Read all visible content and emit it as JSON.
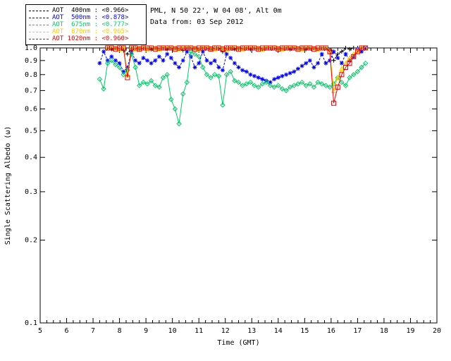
{
  "header": {
    "line1": "PML, N 50 22', W 04 08', Alt 0m",
    "line2": "Data from: 03 Sep 2012"
  },
  "chart_data": {
    "type": "line",
    "title": "",
    "xlabel": "Time (GMT)",
    "ylabel": "Single Scattering Albedo (ω)",
    "xlim": [
      5,
      20
    ],
    "ylim": [
      0.1,
      1.0
    ],
    "yscale": "log",
    "grid": false,
    "legend_position": "top-left",
    "xticks": [
      5,
      6,
      7,
      8,
      9,
      10,
      11,
      12,
      13,
      14,
      15,
      16,
      17,
      18,
      19,
      20
    ],
    "yticks": [
      1.0,
      0.9,
      0.8,
      0.7,
      0.6,
      0.5,
      0.4,
      0.3,
      0.2,
      0.1
    ],
    "x": [
      7.25,
      7.4,
      7.55,
      7.7,
      7.85,
      8.0,
      8.15,
      8.3,
      8.45,
      8.6,
      8.75,
      8.9,
      9.05,
      9.2,
      9.35,
      9.5,
      9.65,
      9.8,
      9.95,
      10.1,
      10.25,
      10.4,
      10.55,
      10.7,
      10.85,
      11.0,
      11.15,
      11.3,
      11.45,
      11.6,
      11.75,
      11.9,
      12.05,
      12.2,
      12.35,
      12.5,
      12.65,
      12.8,
      12.95,
      13.1,
      13.25,
      13.4,
      13.55,
      13.7,
      13.85,
      14.0,
      14.15,
      14.3,
      14.45,
      14.6,
      14.75,
      14.9,
      15.05,
      15.2,
      15.35,
      15.5,
      15.65,
      15.8,
      15.95,
      16.1,
      16.25,
      16.4,
      16.55,
      16.7,
      16.85,
      17.0,
      17.15,
      17.3
    ],
    "series": [
      {
        "name": "AOT 400nm",
        "label": "AOT  400nm : <0.966>",
        "mean": 0.966,
        "color": "#000000",
        "marker": "plus",
        "dash": "3,2",
        "values": [
          null,
          null,
          1.0,
          0.99,
          1.0,
          1.0,
          0.98,
          0.95,
          1.0,
          1.0,
          0.99,
          1.0,
          1.0,
          0.99,
          1.0,
          1.0,
          1.0,
          0.99,
          1.0,
          1.0,
          1.0,
          0.98,
          1.0,
          1.0,
          1.0,
          0.99,
          1.0,
          1.0,
          0.99,
          1.0,
          1.0,
          0.97,
          1.0,
          1.0,
          0.99,
          1.0,
          1.0,
          1.0,
          0.99,
          1.0,
          1.0,
          0.99,
          1.0,
          1.0,
          1.0,
          0.99,
          1.0,
          1.0,
          0.99,
          1.0,
          1.0,
          1.0,
          0.99,
          1.0,
          1.0,
          0.99,
          1.0,
          1.0,
          0.98,
          0.9,
          0.95,
          0.97,
          1.0,
          0.99,
          1.0,
          1.0,
          1.0,
          1.0
        ]
      },
      {
        "name": "AOT 500nm",
        "label": "AOT  500nm : <0.878>",
        "mean": 0.878,
        "color": "#0000ff",
        "marker": "asterisk",
        "dash": "3,2",
        "values": [
          0.88,
          0.97,
          0.9,
          0.93,
          0.9,
          0.88,
          0.82,
          0.85,
          0.97,
          0.9,
          0.88,
          0.92,
          0.9,
          0.88,
          0.9,
          0.93,
          0.9,
          0.95,
          0.92,
          0.88,
          0.85,
          0.9,
          0.97,
          0.93,
          0.85,
          0.88,
          0.97,
          0.9,
          0.88,
          0.9,
          0.85,
          0.83,
          0.95,
          0.92,
          0.88,
          0.85,
          0.83,
          0.82,
          0.8,
          0.79,
          0.78,
          0.77,
          0.76,
          0.75,
          0.77,
          0.78,
          0.79,
          0.8,
          0.81,
          0.82,
          0.84,
          0.86,
          0.88,
          0.9,
          0.85,
          0.88,
          0.95,
          0.88,
          0.9,
          0.97,
          0.92,
          0.88,
          0.95,
          0.9,
          0.93,
          0.99,
          0.97,
          1.0
        ]
      },
      {
        "name": "AOT 675nm",
        "label": "AOT  675nm : <0.777>",
        "mean": 0.777,
        "color": "#00cc66",
        "marker": "diamond",
        "dash": null,
        "values": [
          0.77,
          0.71,
          0.88,
          0.9,
          0.87,
          0.85,
          0.8,
          0.83,
          0.95,
          0.85,
          0.73,
          0.75,
          0.74,
          0.76,
          0.73,
          0.72,
          0.78,
          0.8,
          0.65,
          0.6,
          0.53,
          0.68,
          0.75,
          0.97,
          0.95,
          0.93,
          0.85,
          0.8,
          0.78,
          0.8,
          0.79,
          0.62,
          0.8,
          0.82,
          0.76,
          0.75,
          0.73,
          0.74,
          0.75,
          0.73,
          0.72,
          0.74,
          0.75,
          0.73,
          0.72,
          0.73,
          0.71,
          0.7,
          0.72,
          0.73,
          0.74,
          0.75,
          0.73,
          0.74,
          0.72,
          0.75,
          0.74,
          0.73,
          0.72,
          0.74,
          0.78,
          0.75,
          0.73,
          0.78,
          0.8,
          0.82,
          0.85,
          0.88
        ]
      },
      {
        "name": "AOT 870nm",
        "label": "AOT  870nm : <0.965>",
        "mean": 0.965,
        "color": "#ffcc00",
        "marker": "triangle",
        "dash": null,
        "values": [
          null,
          null,
          1.0,
          1.0,
          1.0,
          0.99,
          1.0,
          0.8,
          1.0,
          0.99,
          1.0,
          1.0,
          0.99,
          1.0,
          1.0,
          0.99,
          1.0,
          1.0,
          1.0,
          1.0,
          0.99,
          1.0,
          1.0,
          1.0,
          1.0,
          0.99,
          1.0,
          1.0,
          1.0,
          0.99,
          1.0,
          1.0,
          0.99,
          1.0,
          1.0,
          1.0,
          0.99,
          1.0,
          1.0,
          1.0,
          1.0,
          0.99,
          1.0,
          1.0,
          1.0,
          1.0,
          0.99,
          1.0,
          1.0,
          1.0,
          1.0,
          0.99,
          1.0,
          1.0,
          1.0,
          0.99,
          1.0,
          1.0,
          0.97,
          0.7,
          0.78,
          0.84,
          0.88,
          0.92,
          0.95,
          0.98,
          1.0,
          1.0
        ]
      },
      {
        "name": "AOT 1020nm",
        "label": "AOT 1020nm : <0.960>",
        "mean": 0.96,
        "color": "#ee0000",
        "marker": "square",
        "dash": null,
        "values": [
          null,
          null,
          1.0,
          1.0,
          0.99,
          1.0,
          1.0,
          0.78,
          1.0,
          1.0,
          0.99,
          1.0,
          1.0,
          1.0,
          0.99,
          1.0,
          1.0,
          1.0,
          1.0,
          0.99,
          1.0,
          1.0,
          1.0,
          1.0,
          0.99,
          1.0,
          1.0,
          1.0,
          0.99,
          1.0,
          1.0,
          0.99,
          1.0,
          1.0,
          1.0,
          0.99,
          1.0,
          1.0,
          1.0,
          1.0,
          0.99,
          1.0,
          1.0,
          1.0,
          1.0,
          0.99,
          1.0,
          1.0,
          1.0,
          1.0,
          0.99,
          1.0,
          1.0,
          1.0,
          0.99,
          1.0,
          1.0,
          1.0,
          0.97,
          0.63,
          0.72,
          0.8,
          0.85,
          0.88,
          0.93,
          0.97,
          1.0,
          1.0
        ]
      }
    ]
  }
}
